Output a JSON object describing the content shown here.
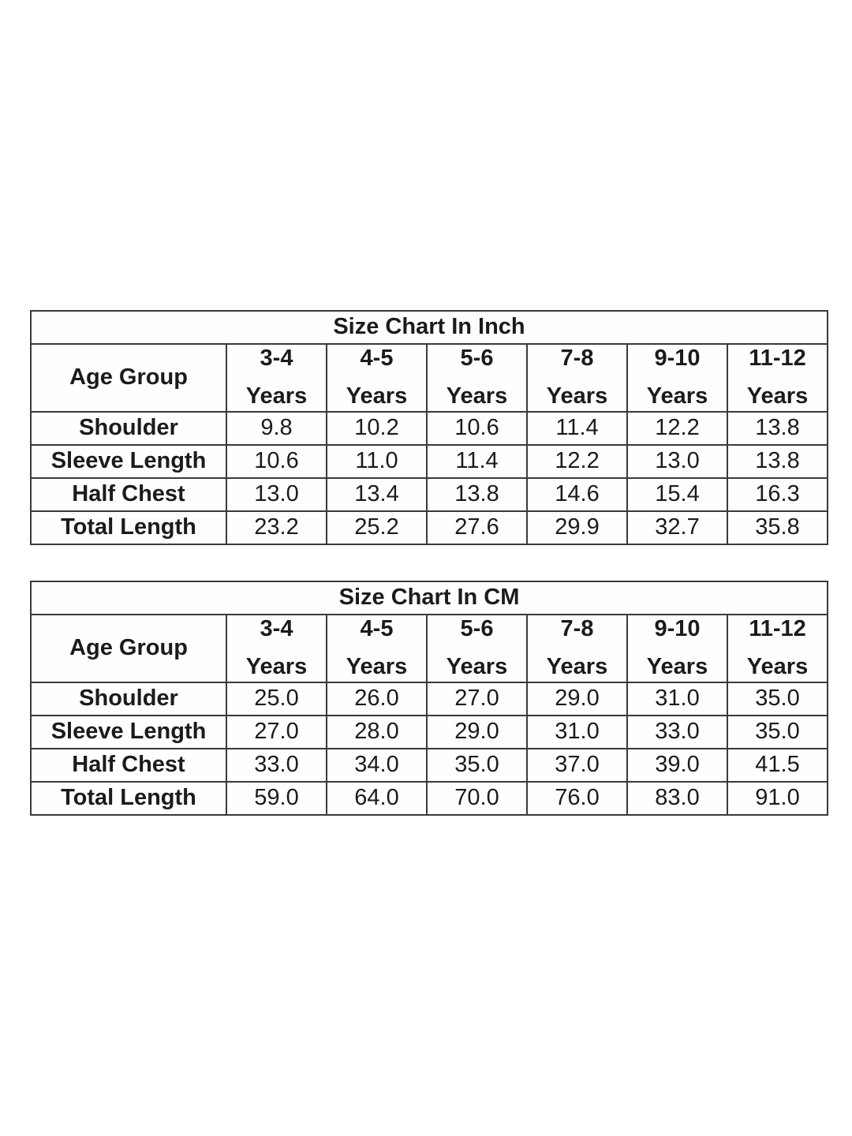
{
  "colors": {
    "background": "#ffffff",
    "border": "#3a3a3a",
    "text": "#1b1b1b"
  },
  "tables": [
    {
      "title": "Size Chart In Inch",
      "corner_label": "Age Group",
      "age_groups": [
        {
          "range": "3-4",
          "unit": "Years"
        },
        {
          "range": "4-5",
          "unit": "Years"
        },
        {
          "range": "5-6",
          "unit": "Years"
        },
        {
          "range": "7-8",
          "unit": "Years"
        },
        {
          "range": "9-10",
          "unit": "Years"
        },
        {
          "range": "11-12",
          "unit": "Years"
        }
      ],
      "rows": [
        {
          "label": "Shoulder",
          "values": [
            "9.8",
            "10.2",
            "10.6",
            "11.4",
            "12.2",
            "13.8"
          ]
        },
        {
          "label": "Sleeve Length",
          "values": [
            "10.6",
            "11.0",
            "11.4",
            "12.2",
            "13.0",
            "13.8"
          ]
        },
        {
          "label": "Half Chest",
          "values": [
            "13.0",
            "13.4",
            "13.8",
            "14.6",
            "15.4",
            "16.3"
          ]
        },
        {
          "label": "Total Length",
          "values": [
            "23.2",
            "25.2",
            "27.6",
            "29.9",
            "32.7",
            "35.8"
          ]
        }
      ]
    },
    {
      "title": "Size Chart In CM",
      "corner_label": "Age Group",
      "age_groups": [
        {
          "range": "3-4",
          "unit": "Years"
        },
        {
          "range": "4-5",
          "unit": "Years"
        },
        {
          "range": "5-6",
          "unit": "Years"
        },
        {
          "range": "7-8",
          "unit": "Years"
        },
        {
          "range": "9-10",
          "unit": "Years"
        },
        {
          "range": "11-12",
          "unit": "Years"
        }
      ],
      "rows": [
        {
          "label": "Shoulder",
          "values": [
            "25.0",
            "26.0",
            "27.0",
            "29.0",
            "31.0",
            "35.0"
          ]
        },
        {
          "label": "Sleeve Length",
          "values": [
            "27.0",
            "28.0",
            "29.0",
            "31.0",
            "33.0",
            "35.0"
          ]
        },
        {
          "label": "Half Chest",
          "values": [
            "33.0",
            "34.0",
            "35.0",
            "37.0",
            "39.0",
            "41.5"
          ]
        },
        {
          "label": "Total Length",
          "values": [
            "59.0",
            "64.0",
            "70.0",
            "76.0",
            "83.0",
            "91.0"
          ]
        }
      ]
    }
  ],
  "chart_data": [
    {
      "type": "table",
      "title": "Size Chart In Inch",
      "columns": [
        "Age Group",
        "3-4 Years",
        "4-5 Years",
        "5-6 Years",
        "7-8 Years",
        "9-10 Years",
        "11-12 Years"
      ],
      "rows": [
        [
          "Shoulder",
          9.8,
          10.2,
          10.6,
          11.4,
          12.2,
          13.8
        ],
        [
          "Sleeve Length",
          10.6,
          11.0,
          11.4,
          12.2,
          13.0,
          13.8
        ],
        [
          "Half Chest",
          13.0,
          13.4,
          13.8,
          14.6,
          15.4,
          16.3
        ],
        [
          "Total Length",
          23.2,
          25.2,
          27.6,
          29.9,
          32.7,
          35.8
        ]
      ]
    },
    {
      "type": "table",
      "title": "Size Chart In CM",
      "columns": [
        "Age Group",
        "3-4 Years",
        "4-5 Years",
        "5-6 Years",
        "7-8 Years",
        "9-10 Years",
        "11-12 Years"
      ],
      "rows": [
        [
          "Shoulder",
          25.0,
          26.0,
          27.0,
          29.0,
          31.0,
          35.0
        ],
        [
          "Sleeve Length",
          27.0,
          28.0,
          29.0,
          31.0,
          33.0,
          35.0
        ],
        [
          "Half Chest",
          33.0,
          34.0,
          35.0,
          37.0,
          39.0,
          41.5
        ],
        [
          "Total Length",
          59.0,
          64.0,
          70.0,
          76.0,
          83.0,
          91.0
        ]
      ]
    }
  ]
}
